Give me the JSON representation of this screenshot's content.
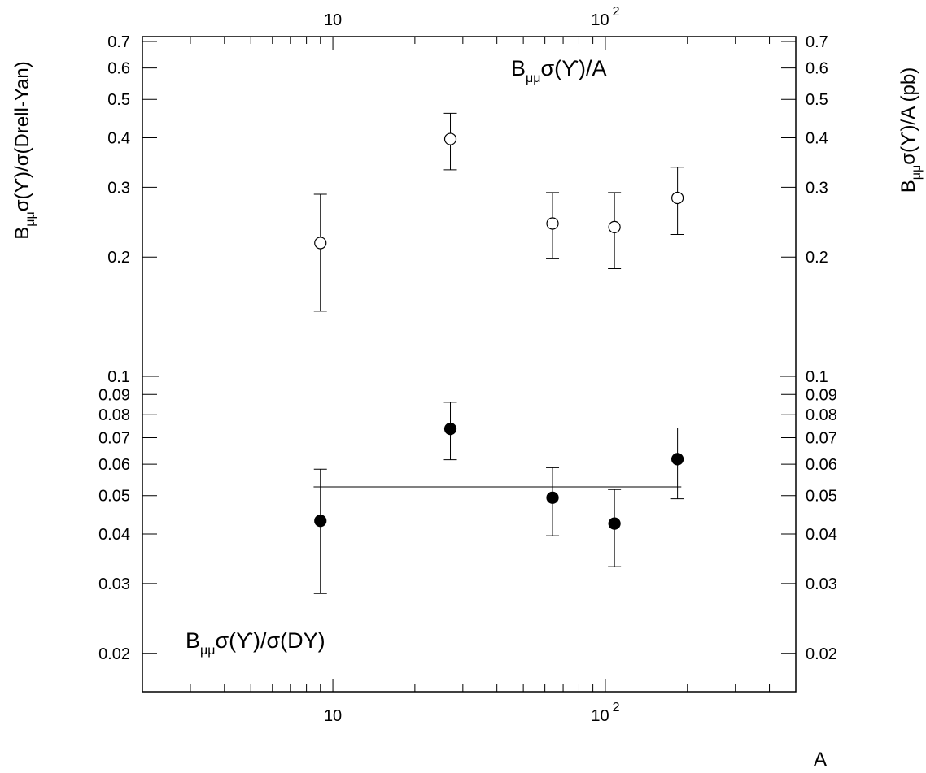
{
  "chart_data": {
    "type": "scatter",
    "x_scale": "log",
    "y_scale": "log",
    "xlim": [
      2,
      500
    ],
    "ylim": [
      0.016,
      0.72
    ],
    "x_ticks_labeled": [
      {
        "value": 10,
        "base": "10",
        "exp": ""
      },
      {
        "value": 100,
        "base": "10",
        "exp": "2"
      }
    ],
    "y_ticks": [
      {
        "value": 0.7,
        "label": "0.7"
      },
      {
        "value": 0.6,
        "label": "0.6"
      },
      {
        "value": 0.5,
        "label": "0.5"
      },
      {
        "value": 0.4,
        "label": "0.4"
      },
      {
        "value": 0.3,
        "label": "0.3"
      },
      {
        "value": 0.2,
        "label": "0.2"
      },
      {
        "value": 0.1,
        "label": "0.1"
      },
      {
        "value": 0.09,
        "label": "0.09"
      },
      {
        "value": 0.08,
        "label": "0.08"
      },
      {
        "value": 0.07,
        "label": "0.07"
      },
      {
        "value": 0.06,
        "label": "0.06"
      },
      {
        "value": 0.05,
        "label": "0.05"
      },
      {
        "value": 0.04,
        "label": "0.04"
      },
      {
        "value": 0.03,
        "label": "0.03"
      },
      {
        "value": 0.02,
        "label": "0.02"
      }
    ],
    "xlabel": "A",
    "ylabel_left": {
      "pre": "B",
      "sub": "μμ",
      "post": "σ(ϒ)/σ(Drell-Yan)"
    },
    "ylabel_right": {
      "pre": "B",
      "sub": "μμ",
      "post": "σ(ϒ)/A (pb)"
    },
    "series": [
      {
        "name": {
          "pre": "B",
          "sub": "μμ",
          "post": "σ(ϒ)/A"
        },
        "marker": "open-circle",
        "x": [
          9,
          27,
          64,
          108,
          184
        ],
        "y": [
          0.217,
          0.397,
          0.243,
          0.238,
          0.282
        ],
        "yerr_low": [
          0.146,
          0.332,
          0.198,
          0.187,
          0.228
        ],
        "yerr_high": [
          0.288,
          0.461,
          0.291,
          0.291,
          0.337
        ],
        "fit": {
          "y": 0.269,
          "x_from": 8.5,
          "x_to": 190
        }
      },
      {
        "name": {
          "pre": "B",
          "sub": "μμ",
          "post": "σ(ϒ)/σ(DY)"
        },
        "marker": "filled-circle",
        "x": [
          9,
          27,
          64,
          108,
          184
        ],
        "y": [
          0.0432,
          0.0737,
          0.0494,
          0.0425,
          0.0618
        ],
        "yerr_low": [
          0.0283,
          0.0616,
          0.0396,
          0.0331,
          0.0491
        ],
        "yerr_high": [
          0.0583,
          0.086,
          0.0588,
          0.0518,
          0.0741
        ],
        "fit": {
          "y": 0.0526,
          "x_from": 8.5,
          "x_to": 190
        }
      }
    ]
  }
}
